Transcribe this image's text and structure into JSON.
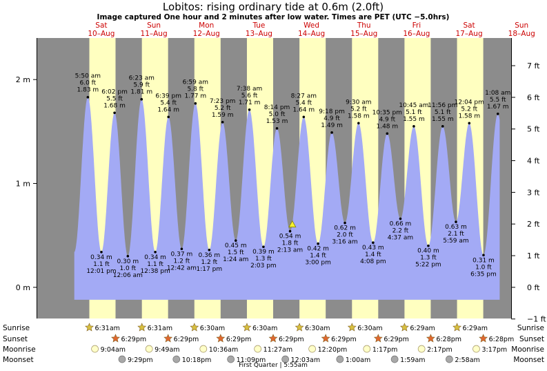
{
  "header": {
    "title": "Lobitos: rising  ordinary tide at 0.6m (2.0ft)",
    "subtitle": "Image captured One hour and 2 minutes after low water. Times are PET (UTC −5.0hrs)"
  },
  "colors": {
    "night": "#8c8c8c",
    "day": "#ffffc0",
    "water": "#a3aaf5",
    "weekday": "#cc0000",
    "sunrise_star": "#d8c040",
    "sunset_star": "#e06830",
    "moonrise": "#ffffc8",
    "moonset": "#a8a8a8"
  },
  "days": [
    {
      "weekday": "Sat",
      "date": "10–Aug"
    },
    {
      "weekday": "Sun",
      "date": "11–Aug"
    },
    {
      "weekday": "Mon",
      "date": "12–Aug"
    },
    {
      "weekday": "Tue",
      "date": "13–Aug"
    },
    {
      "weekday": "Wed",
      "date": "14–Aug"
    },
    {
      "weekday": "Thu",
      "date": "15–Aug"
    },
    {
      "weekday": "Fri",
      "date": "16–Aug"
    },
    {
      "weekday": "Sat",
      "date": "17–Aug"
    },
    {
      "weekday": "Sun",
      "date": "18–Aug"
    }
  ],
  "chart_data": {
    "type": "area",
    "title": "Lobitos: rising  ordinary tide at 0.6m (2.0ft)",
    "x_range_days_from_10_aug_0000": [
      -0.72,
      8.3
    ],
    "y_left": {
      "unit": "m",
      "min": -0.3,
      "max": 2.4,
      "ticks": [
        "0 m",
        "1 m",
        "2 m"
      ],
      "tick_values": [
        0,
        1,
        2
      ]
    },
    "y_right": {
      "unit": "ft",
      "ticks": [
        "−1 ft",
        "0 ft",
        "1 ft",
        "2 ft",
        "3 ft",
        "4 ft",
        "5 ft",
        "6 ft",
        "7 ft"
      ],
      "tick_values": [
        -1,
        0,
        1,
        2,
        3,
        4,
        5,
        6,
        7
      ]
    },
    "daylight": [
      {
        "sunrise": "Aug 10 06:31",
        "sunset": "Aug 10 18:29"
      },
      {
        "sunrise": "Aug 11 06:31",
        "sunset": "Aug 11 18:29"
      },
      {
        "sunrise": "Aug 12 06:30",
        "sunset": "Aug 12 18:29"
      },
      {
        "sunrise": "Aug 13 06:30",
        "sunset": "Aug 13 18:29"
      },
      {
        "sunrise": "Aug 14 06:30",
        "sunset": "Aug 14 18:29"
      },
      {
        "sunrise": "Aug 15 06:30",
        "sunset": "Aug 15 18:29"
      },
      {
        "sunrise": "Aug 16 06:29",
        "sunset": "Aug 16 18:28"
      },
      {
        "sunrise": "Aug 17 06:29",
        "sunset": "Aug 17 18:28"
      }
    ],
    "tides": [
      {
        "day": "Aug 10",
        "time": "5:50 am",
        "m": 1.83,
        "ft": "6.0 ft",
        "m_label": "1.83 m",
        "type": "high"
      },
      {
        "day": "Aug 10",
        "time": "12:01 pm",
        "m": 0.34,
        "ft": "1.1 ft",
        "m_label": "0.34 m",
        "type": "low"
      },
      {
        "day": "Aug 10",
        "time": "6:02 pm",
        "m": 1.68,
        "ft": "5.5 ft",
        "m_label": "1.68 m",
        "type": "high"
      },
      {
        "day": "Aug 11",
        "time": "12:06 am",
        "m": 0.3,
        "ft": "1.0 ft",
        "m_label": "0.30 m",
        "type": "low"
      },
      {
        "day": "Aug 11",
        "time": "6:23 am",
        "m": 1.81,
        "ft": "5.9 ft",
        "m_label": "1.81 m",
        "type": "high"
      },
      {
        "day": "Aug 11",
        "time": "12:38 pm",
        "m": 0.34,
        "ft": "1.1 ft",
        "m_label": "0.34 m",
        "type": "low"
      },
      {
        "day": "Aug 11",
        "time": "6:39 pm",
        "m": 1.64,
        "ft": "5.4 ft",
        "m_label": "1.64 m",
        "type": "high"
      },
      {
        "day": "Aug 12",
        "time": "12:42 am",
        "m": 0.37,
        "ft": "1.2 ft",
        "m_label": "0.37 m",
        "type": "low"
      },
      {
        "day": "Aug 12",
        "time": "6:59 am",
        "m": 1.77,
        "ft": "5.8 ft",
        "m_label": "1.77 m",
        "type": "high"
      },
      {
        "day": "Aug 12",
        "time": "1:17 pm",
        "m": 0.36,
        "ft": "1.2 ft",
        "m_label": "0.36 m",
        "type": "low"
      },
      {
        "day": "Aug 12",
        "time": "7:23 pm",
        "m": 1.59,
        "ft": "5.2 ft",
        "m_label": "1.59 m",
        "type": "high"
      },
      {
        "day": "Aug 13",
        "time": "1:24 am",
        "m": 0.45,
        "ft": "1.5 ft",
        "m_label": "0.45 m",
        "type": "low"
      },
      {
        "day": "Aug 13",
        "time": "7:38 am",
        "m": 1.71,
        "ft": "5.6 ft",
        "m_label": "1.71 m",
        "type": "high"
      },
      {
        "day": "Aug 13",
        "time": "2:03 pm",
        "m": 0.39,
        "ft": "1.3 ft",
        "m_label": "0.39 m",
        "type": "low"
      },
      {
        "day": "Aug 13",
        "time": "8:14 pm",
        "m": 1.53,
        "ft": "5.0 ft",
        "m_label": "1.53 m",
        "type": "high"
      },
      {
        "day": "Aug 14",
        "time": "2:13 am",
        "m": 0.54,
        "ft": "1.8 ft",
        "m_label": "0.54 m",
        "type": "low"
      },
      {
        "day": "Aug 14",
        "time": "8:27 am",
        "m": 1.64,
        "ft": "5.4 ft",
        "m_label": "1.64 m",
        "type": "high"
      },
      {
        "day": "Aug 14",
        "time": "3:00 pm",
        "m": 0.42,
        "ft": "1.4 ft",
        "m_label": "0.42 m",
        "type": "low"
      },
      {
        "day": "Aug 14",
        "time": "9:18 pm",
        "m": 1.49,
        "ft": "4.9 ft",
        "m_label": "1.49 m",
        "type": "high"
      },
      {
        "day": "Aug 15",
        "time": "3:16 am",
        "m": 0.62,
        "ft": "2.0 ft",
        "m_label": "0.62 m",
        "type": "low"
      },
      {
        "day": "Aug 15",
        "time": "9:30 am",
        "m": 1.58,
        "ft": "5.2 ft",
        "m_label": "1.58 m",
        "type": "high"
      },
      {
        "day": "Aug 15",
        "time": "4:08 pm",
        "m": 0.43,
        "ft": "1.4 ft",
        "m_label": "0.43 m",
        "type": "low"
      },
      {
        "day": "Aug 15",
        "time": "10:35 pm",
        "m": 1.48,
        "ft": "4.9 ft",
        "m_label": "1.48 m",
        "type": "high"
      },
      {
        "day": "Aug 16",
        "time": "4:37 am",
        "m": 0.66,
        "ft": "2.2 ft",
        "m_label": "0.66 m",
        "type": "low"
      },
      {
        "day": "Aug 16",
        "time": "10:45 am",
        "m": 1.55,
        "ft": "5.1 ft",
        "m_label": "1.55 m",
        "type": "high"
      },
      {
        "day": "Aug 16",
        "time": "5:22 pm",
        "m": 0.4,
        "ft": "1.3 ft",
        "m_label": "0.40 m",
        "type": "low"
      },
      {
        "day": "Aug 16",
        "time": "11:56 pm",
        "m": 1.55,
        "ft": "5.1 ft",
        "m_label": "1.55 m",
        "type": "high"
      },
      {
        "day": "Aug 17",
        "time": "5:59 am",
        "m": 0.63,
        "ft": "2.1 ft",
        "m_label": "0.63 m",
        "type": "low"
      },
      {
        "day": "Aug 17",
        "time": "12:04 pm",
        "m": 1.58,
        "ft": "5.2 ft",
        "m_label": "1.58 m",
        "type": "high"
      },
      {
        "day": "Aug 17",
        "time": "6:35 pm",
        "m": 0.31,
        "ft": "1.0 ft",
        "m_label": "0.31 m",
        "type": "low"
      },
      {
        "day": "Aug 18",
        "time": "1:08 am",
        "m": 1.67,
        "ft": "5.5 ft",
        "m_label": "1.67 m",
        "type": "high"
      }
    ],
    "current": {
      "time": "Aug 14 03:15",
      "m": 0.6
    }
  },
  "astro": {
    "row_labels": [
      "Sunrise",
      "Sunset",
      "Moonrise",
      "Moonset"
    ],
    "sunrise": [
      "6:31am",
      "6:31am",
      "6:30am",
      "6:30am",
      "6:30am",
      "6:30am",
      "6:29am",
      "6:29am"
    ],
    "sunset": [
      "6:29pm",
      "6:29pm",
      "6:29pm",
      "6:29pm",
      "6:29pm",
      "6:29pm",
      "6:28pm",
      "6:28pm"
    ],
    "moonrise": [
      "9:04am",
      "9:49am",
      "10:36am",
      "11:27am",
      "12:20pm",
      "1:17pm",
      "2:17pm",
      "3:17pm"
    ],
    "moonset": [
      "9:29pm",
      "10:18pm",
      "11:09pm",
      "12:03am",
      "1:00am",
      "1:59am",
      "2:58am"
    ],
    "moon_phase_note": "First Quarter | 5:55am"
  }
}
